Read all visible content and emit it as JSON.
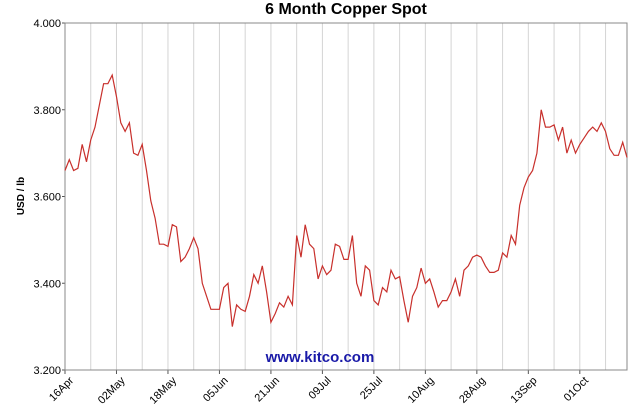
{
  "chart_data": {
    "type": "line",
    "title": "6 Month Copper Spot",
    "y_label": "USD / lb",
    "annotation": "www.kitco.com",
    "categories": [
      "16Apr",
      null,
      null,
      null,
      null,
      null,
      null,
      null,
      null,
      null,
      null,
      null,
      "02May",
      null,
      null,
      null,
      null,
      null,
      null,
      null,
      null,
      null,
      null,
      null,
      "18May",
      null,
      null,
      null,
      null,
      null,
      null,
      null,
      null,
      null,
      null,
      null,
      "05Jun",
      null,
      null,
      null,
      null,
      null,
      null,
      null,
      null,
      null,
      null,
      null,
      "21Jun",
      null,
      null,
      null,
      null,
      null,
      null,
      null,
      null,
      null,
      null,
      null,
      "09Jul",
      null,
      null,
      null,
      null,
      null,
      null,
      null,
      null,
      null,
      null,
      null,
      "25Jul",
      null,
      null,
      null,
      null,
      null,
      null,
      null,
      null,
      null,
      null,
      null,
      "10Aug",
      null,
      null,
      null,
      null,
      null,
      null,
      null,
      null,
      null,
      null,
      null,
      "28Aug",
      null,
      null,
      null,
      null,
      null,
      null,
      null,
      null,
      null,
      null,
      null,
      "13Sep",
      null,
      null,
      null,
      null,
      null,
      null,
      null,
      null,
      null,
      null,
      null,
      "01Oct",
      null,
      null,
      null,
      null,
      null,
      null,
      null,
      null,
      null,
      null,
      null
    ],
    "values": [
      3.66,
      3.685,
      3.66,
      3.665,
      3.72,
      3.68,
      3.73,
      3.76,
      3.81,
      3.86,
      3.86,
      3.88,
      3.83,
      3.77,
      3.75,
      3.77,
      3.7,
      3.695,
      3.72,
      3.66,
      3.59,
      3.55,
      3.49,
      3.49,
      3.485,
      3.535,
      3.53,
      3.45,
      3.46,
      3.48,
      3.505,
      3.48,
      3.4,
      3.37,
      3.34,
      3.34,
      3.34,
      3.39,
      3.4,
      3.3,
      3.35,
      3.34,
      3.335,
      3.37,
      3.42,
      3.4,
      3.44,
      3.38,
      3.31,
      3.33,
      3.355,
      3.345,
      3.37,
      3.35,
      3.51,
      3.46,
      3.535,
      3.49,
      3.48,
      3.41,
      3.44,
      3.42,
      3.43,
      3.49,
      3.485,
      3.455,
      3.455,
      3.51,
      3.4,
      3.37,
      3.44,
      3.43,
      3.36,
      3.35,
      3.39,
      3.38,
      3.43,
      3.41,
      3.415,
      3.36,
      3.31,
      3.37,
      3.39,
      3.435,
      3.4,
      3.41,
      3.38,
      3.345,
      3.36,
      3.36,
      3.38,
      3.41,
      3.37,
      3.43,
      3.44,
      3.46,
      3.465,
      3.46,
      3.44,
      3.425,
      3.425,
      3.43,
      3.47,
      3.46,
      3.51,
      3.49,
      3.58,
      3.62,
      3.645,
      3.66,
      3.7,
      3.8,
      3.76,
      3.76,
      3.765,
      3.73,
      3.76,
      3.7,
      3.73,
      3.7,
      3.72,
      3.735,
      3.75,
      3.76,
      3.75,
      3.77,
      3.75,
      3.71,
      3.695,
      3.695,
      3.725,
      3.69
    ],
    "color": "#c8302c",
    "ylim": [
      3.2,
      4.0
    ],
    "yticks": [
      {
        "value": 3.2,
        "label": "3.200"
      },
      {
        "value": 3.4,
        "label": "3.400"
      },
      {
        "value": 3.6,
        "label": "3.600"
      },
      {
        "value": 3.8,
        "label": "3.800"
      },
      {
        "value": 4.0,
        "label": "4.000"
      }
    ],
    "grid": true
  }
}
